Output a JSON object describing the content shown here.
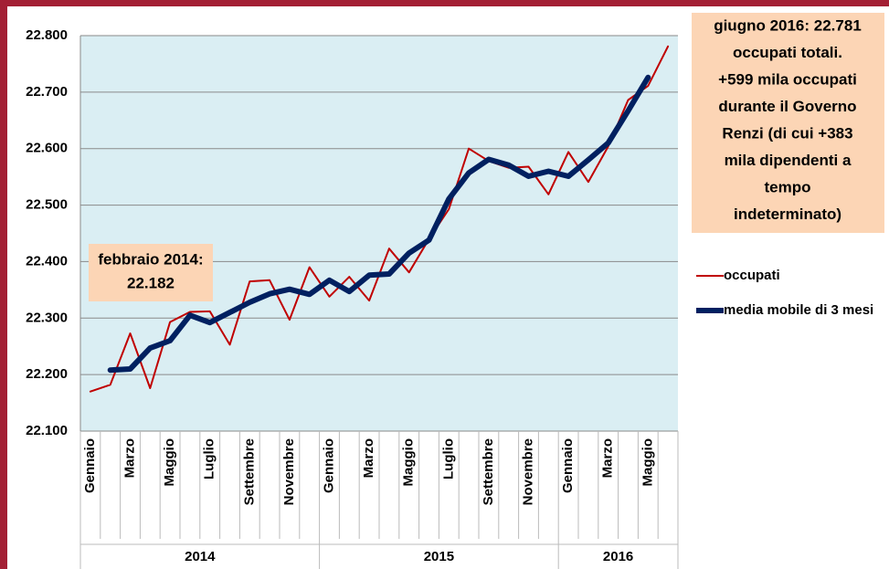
{
  "chart_data": {
    "type": "line",
    "categories": [
      "Gennaio",
      null,
      "Marzo",
      null,
      "Maggio",
      null,
      "Luglio",
      null,
      "Settembre",
      null,
      "Novembre",
      null,
      "Gennaio",
      null,
      "Marzo",
      null,
      "Maggio",
      null,
      "Luglio",
      null,
      "Settembre",
      null,
      "Novembre",
      null,
      "Gennaio",
      null,
      "Marzo",
      null,
      "Maggio",
      null
    ],
    "years": [
      "2014",
      "2015",
      "2016"
    ],
    "series": [
      {
        "name": "occupati",
        "color": "#c00000",
        "values": [
          22170,
          22182,
          22273,
          22176,
          22293,
          22311,
          22312,
          22253,
          22365,
          22367,
          22297,
          22390,
          22338,
          22373,
          22331,
          22423,
          22381,
          22440,
          22493,
          22600,
          22578,
          22566,
          22568,
          22519,
          22594,
          22541,
          22604,
          22686,
          22711,
          22781
        ]
      },
      {
        "name": "media mobile di 3 mesi",
        "color": "#002060",
        "values": [
          null,
          22208,
          22210,
          22247,
          22260,
          22305,
          22292,
          22310,
          22328,
          22343,
          22351,
          22342,
          22367,
          22347,
          22376,
          22378,
          22415,
          22438,
          22511,
          22557,
          22581,
          22571,
          22551,
          22560,
          22551,
          22580,
          22610,
          22667,
          22726,
          null
        ]
      }
    ],
    "ylim": [
      22100,
      22800
    ],
    "yticks": [
      {
        "value": 22100,
        "label": "22.100"
      },
      {
        "value": 22200,
        "label": "22.200"
      },
      {
        "value": 22300,
        "label": "22.300"
      },
      {
        "value": 22400,
        "label": "22.400"
      },
      {
        "value": 22500,
        "label": "22.500"
      },
      {
        "value": 22600,
        "label": "22.600"
      },
      {
        "value": 22700,
        "label": "22.700"
      },
      {
        "value": 22800,
        "label": "22.800"
      }
    ],
    "grid": true,
    "legend": "right",
    "annotations": [
      {
        "lines": [
          "febbraio 2014:",
          "22.182"
        ]
      },
      {
        "lines": [
          "giugno 2016: 22.781",
          "occupati totali.",
          "+599 mila occupati",
          "durante il Governo",
          "Renzi (di cui +383",
          "mila dipendenti a",
          "tempo",
          "indeterminato)"
        ]
      }
    ]
  }
}
